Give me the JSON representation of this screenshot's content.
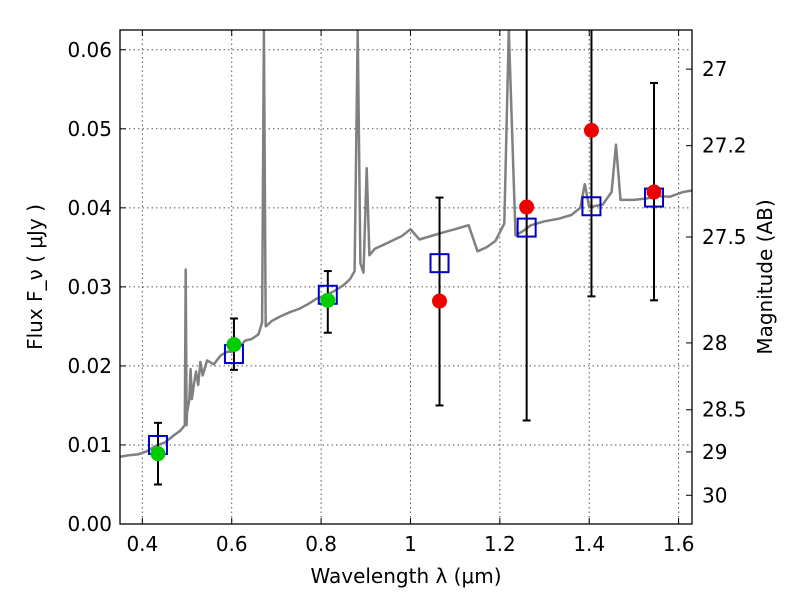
{
  "chart_data": {
    "type": "scatter",
    "xlabel": "Wavelength  λ (μm)",
    "ylabel": "Flux  F_ν  ( μJy )",
    "ylabel_right": "Magnitude (AB)",
    "xlim": [
      0.35,
      1.63
    ],
    "ylim": [
      0,
      0.0625
    ],
    "grid": true,
    "x_ticks": [
      0.4,
      0.6,
      0.8,
      1.0,
      1.2,
      1.4,
      1.6
    ],
    "x_tick_labels": [
      "0.4",
      "0.6",
      "0.8",
      "1",
      "1.2",
      "1.4",
      "1.6"
    ],
    "y_ticks": [
      0,
      0.01,
      0.02,
      0.03,
      0.04,
      0.05,
      0.06
    ],
    "y_tick_labels": [
      "0.00",
      "0.01",
      "0.02",
      "0.03",
      "0.04",
      "0.05",
      "0.06"
    ],
    "right_ticks": [
      27,
      27.2,
      27.5,
      28,
      28.5,
      29,
      30
    ],
    "right_tick_labels": [
      "27",
      "27.2",
      "27.5",
      "28",
      "28.5",
      "29",
      "30"
    ],
    "series": [
      {
        "marker": "line",
        "color": "#808080",
        "points": [
          [
            0.35,
            0.0085
          ],
          [
            0.37,
            0.0087
          ],
          [
            0.39,
            0.0088
          ],
          [
            0.41,
            0.0092
          ],
          [
            0.43,
            0.0099
          ],
          [
            0.45,
            0.0103
          ],
          [
            0.47,
            0.0112
          ],
          [
            0.485,
            0.0118
          ],
          [
            0.495,
            0.0125
          ],
          [
            0.497,
            0.0322
          ],
          [
            0.499,
            0.0125
          ],
          [
            0.5,
            0.0141
          ],
          [
            0.505,
            0.0157
          ],
          [
            0.508,
            0.0196
          ],
          [
            0.511,
            0.0158
          ],
          [
            0.515,
            0.0175
          ],
          [
            0.52,
            0.0193
          ],
          [
            0.525,
            0.0176
          ],
          [
            0.53,
            0.0205
          ],
          [
            0.535,
            0.0188
          ],
          [
            0.545,
            0.0207
          ],
          [
            0.56,
            0.0202
          ],
          [
            0.575,
            0.0213
          ],
          [
            0.59,
            0.0218
          ],
          [
            0.6,
            0.0218
          ],
          [
            0.615,
            0.0222
          ],
          [
            0.63,
            0.0232
          ],
          [
            0.645,
            0.0234
          ],
          [
            0.66,
            0.024
          ],
          [
            0.668,
            0.0255
          ],
          [
            0.672,
            0.0625
          ],
          [
            0.676,
            0.025
          ],
          [
            0.69,
            0.0257
          ],
          [
            0.71,
            0.0263
          ],
          [
            0.73,
            0.0268
          ],
          [
            0.75,
            0.0272
          ],
          [
            0.77,
            0.0278
          ],
          [
            0.79,
            0.0285
          ],
          [
            0.81,
            0.0289
          ],
          [
            0.83,
            0.0295
          ],
          [
            0.85,
            0.0302
          ],
          [
            0.865,
            0.031
          ],
          [
            0.875,
            0.032
          ],
          [
            0.882,
            0.0625
          ],
          [
            0.888,
            0.033
          ],
          [
            0.895,
            0.0318
          ],
          [
            0.902,
            0.045
          ],
          [
            0.908,
            0.034
          ],
          [
            0.92,
            0.0348
          ],
          [
            0.95,
            0.0356
          ],
          [
            0.98,
            0.0364
          ],
          [
            1.0,
            0.0373
          ],
          [
            1.02,
            0.036
          ],
          [
            1.05,
            0.0365
          ],
          [
            1.08,
            0.037
          ],
          [
            1.1,
            0.0373
          ],
          [
            1.13,
            0.0378
          ],
          [
            1.15,
            0.0345
          ],
          [
            1.17,
            0.035
          ],
          [
            1.19,
            0.0358
          ],
          [
            1.21,
            0.038
          ],
          [
            1.22,
            0.0625
          ],
          [
            1.235,
            0.0365
          ],
          [
            1.25,
            0.037
          ],
          [
            1.27,
            0.0378
          ],
          [
            1.3,
            0.0383
          ],
          [
            1.33,
            0.0386
          ],
          [
            1.36,
            0.0391
          ],
          [
            1.38,
            0.04
          ],
          [
            1.39,
            0.043
          ],
          [
            1.4,
            0.0401
          ],
          [
            1.43,
            0.0404
          ],
          [
            1.45,
            0.042
          ],
          [
            1.46,
            0.048
          ],
          [
            1.47,
            0.041
          ],
          [
            1.5,
            0.041
          ],
          [
            1.53,
            0.0412
          ],
          [
            1.55,
            0.0415
          ],
          [
            1.58,
            0.0414
          ],
          [
            1.61,
            0.042
          ],
          [
            1.63,
            0.0422
          ]
        ]
      },
      {
        "marker": "open-square",
        "color": "#0000cc",
        "points": [
          [
            0.435,
            0.01
          ],
          [
            0.605,
            0.0215
          ],
          [
            0.815,
            0.029
          ],
          [
            1.065,
            0.033
          ],
          [
            1.26,
            0.0375
          ],
          [
            1.405,
            0.0402
          ],
          [
            1.545,
            0.0413
          ]
        ]
      },
      {
        "marker": "filled-circle",
        "color": "#00cc00",
        "points": [
          {
            "x": 0.435,
            "y": 0.0089,
            "err_low": 0.005,
            "err_high": 0.0128
          },
          {
            "x": 0.605,
            "y": 0.0227,
            "err_low": 0.0195,
            "err_high": 0.026
          },
          {
            "x": 0.815,
            "y": 0.0283,
            "err_low": 0.0242,
            "err_high": 0.032
          }
        ]
      },
      {
        "marker": "filled-circle",
        "color": "#ee0000",
        "points": [
          {
            "x": 1.065,
            "y": 0.0282,
            "err_low": 0.015,
            "err_high": 0.0413
          },
          {
            "x": 1.26,
            "y": 0.0401,
            "err_low": 0.0131,
            "err_high": 0.0625
          },
          {
            "x": 1.405,
            "y": 0.0498,
            "err_low": 0.0288,
            "err_high": 0.0625
          },
          {
            "x": 1.545,
            "y": 0.042,
            "err_low": 0.0283,
            "err_high": 0.0558
          }
        ]
      }
    ]
  }
}
